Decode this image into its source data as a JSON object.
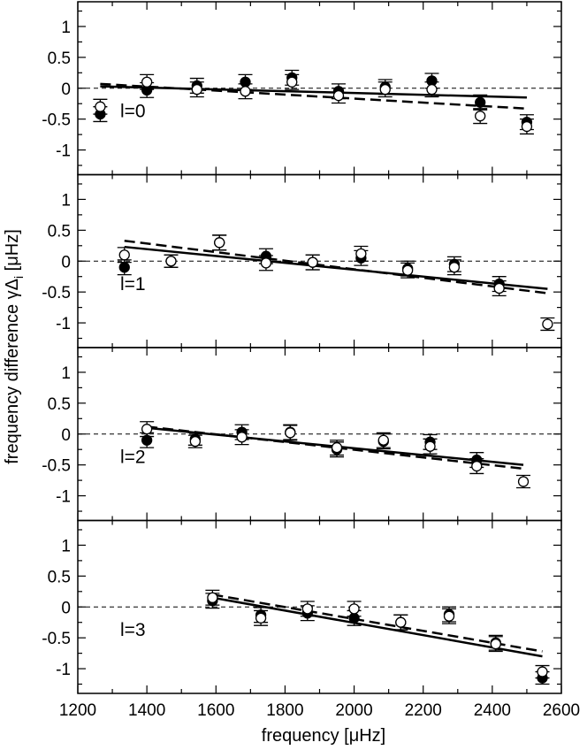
{
  "chart_data": {
    "type": "scatter",
    "xlabel": "frequency [μHz]",
    "ylabel": "frequency difference γΔ",
    "ylabel_subscript": "i",
    "ylabel_suffix": " [μHz]",
    "xlim": [
      1200,
      2600
    ],
    "ylim": [
      -1.4,
      1.4
    ],
    "xticks": [
      1200,
      1400,
      1600,
      1800,
      2000,
      2200,
      2400,
      2600
    ],
    "yticks": [
      -1,
      -0.5,
      0,
      0.5,
      1
    ],
    "zero_line": "dashed",
    "legend": "none",
    "panels": [
      {
        "label": "l=0",
        "filled": [
          {
            "x": 1265,
            "y": -0.42,
            "err": 0.12
          },
          {
            "x": 1400,
            "y": -0.03,
            "err": 0.12
          },
          {
            "x": 1545,
            "y": 0.04,
            "err": 0.12
          },
          {
            "x": 1685,
            "y": 0.1,
            "err": 0.12
          },
          {
            "x": 1820,
            "y": 0.17,
            "err": 0.12
          },
          {
            "x": 1955,
            "y": -0.05,
            "err": 0.12
          },
          {
            "x": 2090,
            "y": 0.02,
            "err": 0.12
          },
          {
            "x": 2225,
            "y": 0.12,
            "err": 0.12
          },
          {
            "x": 2365,
            "y": -0.23,
            "err": 0.12
          },
          {
            "x": 2500,
            "y": -0.55,
            "err": 0.12
          }
        ],
        "open": [
          {
            "x": 1265,
            "y": -0.3,
            "err": 0.12
          },
          {
            "x": 1400,
            "y": 0.1,
            "err": 0.12
          },
          {
            "x": 1545,
            "y": -0.02,
            "err": 0.12
          },
          {
            "x": 1685,
            "y": -0.05,
            "err": 0.12
          },
          {
            "x": 1820,
            "y": 0.1,
            "err": 0.12
          },
          {
            "x": 1955,
            "y": -0.12,
            "err": 0.12
          },
          {
            "x": 2090,
            "y": -0.02,
            "err": 0.12
          },
          {
            "x": 2225,
            "y": -0.02,
            "err": 0.12
          },
          {
            "x": 2365,
            "y": -0.45,
            "err": 0.12
          },
          {
            "x": 2500,
            "y": -0.62,
            "err": 0.12
          }
        ],
        "solid_fit": [
          [
            1265,
            0.03
          ],
          [
            2500,
            -0.15
          ]
        ],
        "dashed_fit": [
          [
            1265,
            0.07
          ],
          [
            2500,
            -0.33
          ]
        ]
      },
      {
        "label": "l=1",
        "filled": [
          {
            "x": 1335,
            "y": -0.1,
            "err": 0.12
          },
          {
            "x": 1470,
            "y": 0.0,
            "err": 0.1
          },
          {
            "x": 1610,
            "y": 0.3,
            "err": 0.12
          },
          {
            "x": 1745,
            "y": 0.08,
            "err": 0.12
          },
          {
            "x": 1880,
            "y": -0.02,
            "err": 0.12
          },
          {
            "x": 2020,
            "y": 0.05,
            "err": 0.12
          },
          {
            "x": 2155,
            "y": -0.12,
            "err": 0.12
          },
          {
            "x": 2290,
            "y": -0.05,
            "err": 0.12
          },
          {
            "x": 2420,
            "y": -0.37,
            "err": 0.12
          }
        ],
        "open": [
          {
            "x": 1335,
            "y": 0.1,
            "err": 0.12
          },
          {
            "x": 1470,
            "y": 0.0,
            "err": 0.1
          },
          {
            "x": 1610,
            "y": 0.3,
            "err": 0.12
          },
          {
            "x": 1745,
            "y": -0.03,
            "err": 0.12
          },
          {
            "x": 1880,
            "y": -0.02,
            "err": 0.12
          },
          {
            "x": 2020,
            "y": 0.12,
            "err": 0.12
          },
          {
            "x": 2155,
            "y": -0.15,
            "err": 0.12
          },
          {
            "x": 2290,
            "y": -0.1,
            "err": 0.12
          },
          {
            "x": 2420,
            "y": -0.44,
            "err": 0.12
          },
          {
            "x": 2560,
            "y": -1.02,
            "err": 0.1
          }
        ],
        "solid_fit": [
          [
            1335,
            0.23
          ],
          [
            2560,
            -0.45
          ]
        ],
        "dashed_fit": [
          [
            1335,
            0.33
          ],
          [
            2560,
            -0.52
          ]
        ]
      },
      {
        "label": "l=2",
        "filled": [
          {
            "x": 1400,
            "y": -0.1,
            "err": 0.12
          },
          {
            "x": 1540,
            "y": -0.08,
            "err": 0.1
          },
          {
            "x": 1675,
            "y": 0.03,
            "err": 0.12
          },
          {
            "x": 1815,
            "y": 0.03,
            "err": 0.12
          },
          {
            "x": 1950,
            "y": -0.25,
            "err": 0.12
          },
          {
            "x": 2085,
            "y": -0.12,
            "err": 0.12
          },
          {
            "x": 2220,
            "y": -0.13,
            "err": 0.12
          },
          {
            "x": 2355,
            "y": -0.42,
            "err": 0.12
          }
        ],
        "open": [
          {
            "x": 1400,
            "y": 0.08,
            "err": 0.12
          },
          {
            "x": 1540,
            "y": -0.12,
            "err": 0.1
          },
          {
            "x": 1675,
            "y": -0.05,
            "err": 0.12
          },
          {
            "x": 1815,
            "y": 0.02,
            "err": 0.12
          },
          {
            "x": 1950,
            "y": -0.22,
            "err": 0.12
          },
          {
            "x": 2085,
            "y": -0.1,
            "err": 0.12
          },
          {
            "x": 2220,
            "y": -0.2,
            "err": 0.12
          },
          {
            "x": 2355,
            "y": -0.52,
            "err": 0.12
          },
          {
            "x": 2490,
            "y": -0.77,
            "err": 0.1
          }
        ],
        "solid_fit": [
          [
            1400,
            0.1
          ],
          [
            2490,
            -0.5
          ]
        ],
        "dashed_fit": [
          [
            1400,
            0.12
          ],
          [
            2490,
            -0.56
          ]
        ]
      },
      {
        "label": "l=3",
        "filled": [
          {
            "x": 1590,
            "y": 0.1,
            "err": 0.12
          },
          {
            "x": 1730,
            "y": -0.13,
            "err": 0.12
          },
          {
            "x": 1865,
            "y": -0.1,
            "err": 0.12
          },
          {
            "x": 2000,
            "y": -0.18,
            "err": 0.12
          },
          {
            "x": 2135,
            "y": -0.25,
            "err": 0.12
          },
          {
            "x": 2275,
            "y": -0.12,
            "err": 0.12
          },
          {
            "x": 2410,
            "y": -0.58,
            "err": 0.12
          },
          {
            "x": 2545,
            "y": -1.15,
            "err": 0.1
          }
        ],
        "open": [
          {
            "x": 1590,
            "y": 0.15,
            "err": 0.12
          },
          {
            "x": 1730,
            "y": -0.18,
            "err": 0.12
          },
          {
            "x": 1865,
            "y": -0.03,
            "err": 0.12
          },
          {
            "x": 2000,
            "y": -0.03,
            "err": 0.12
          },
          {
            "x": 2135,
            "y": -0.25,
            "err": 0.12
          },
          {
            "x": 2275,
            "y": -0.15,
            "err": 0.12
          },
          {
            "x": 2410,
            "y": -0.6,
            "err": 0.12
          },
          {
            "x": 2545,
            "y": -1.05,
            "err": 0.1
          }
        ],
        "solid_fit": [
          [
            1590,
            0.15
          ],
          [
            2545,
            -0.8
          ]
        ],
        "dashed_fit": [
          [
            1590,
            0.2
          ],
          [
            2545,
            -0.72
          ]
        ]
      }
    ]
  }
}
